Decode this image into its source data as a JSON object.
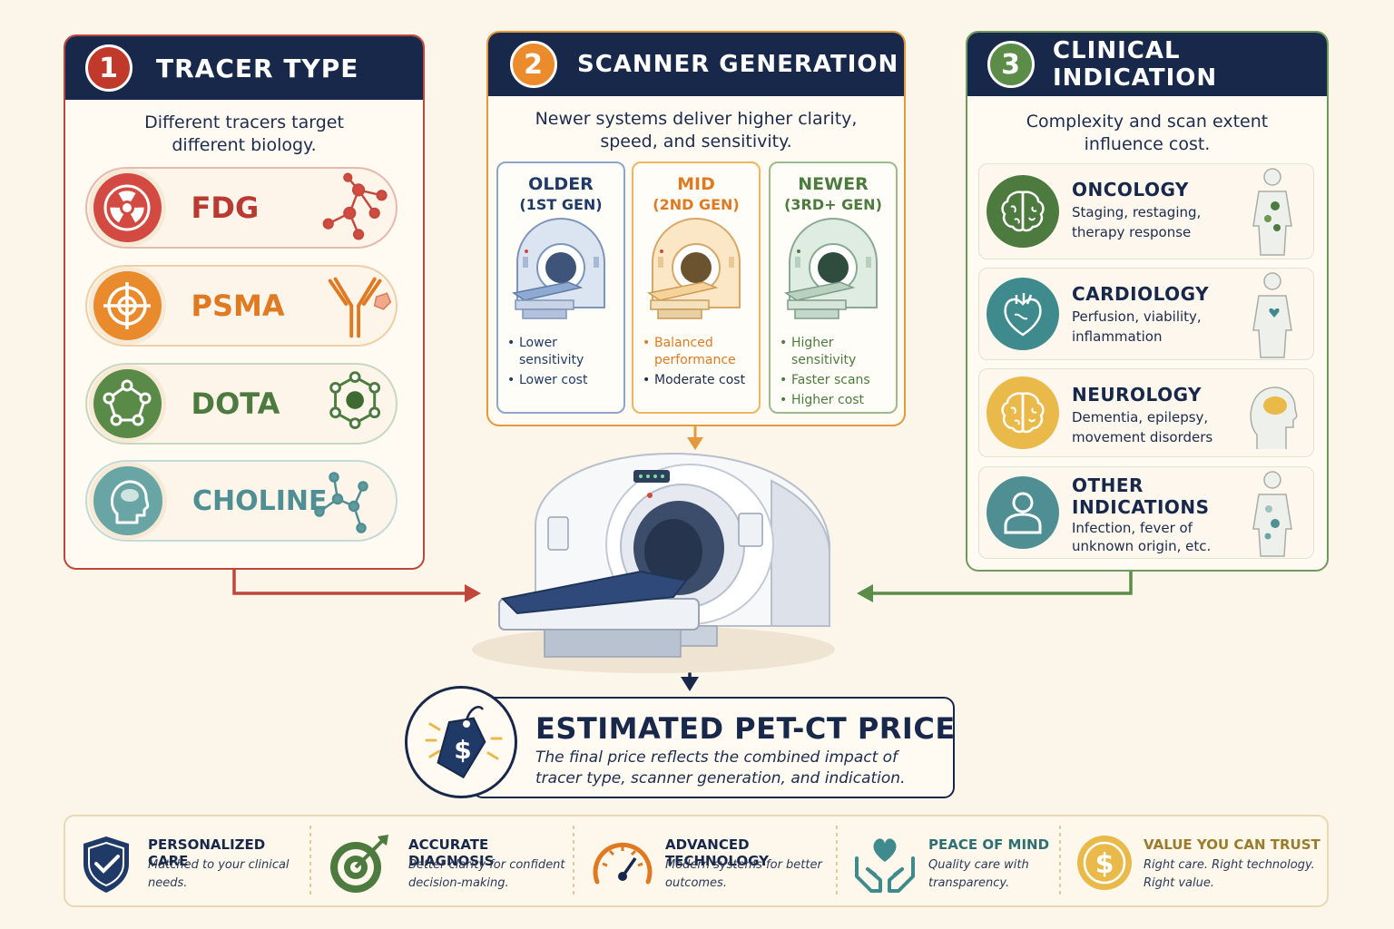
{
  "tracer": {
    "number": "1",
    "title": "TRACER TYPE",
    "subtitle_line1": "Different tracers target",
    "subtitle_line2": "different biology.",
    "items": [
      {
        "label": "FDG",
        "color": "#b93a32",
        "icon": "radiation-icon"
      },
      {
        "label": "PSMA",
        "color": "#e07a22",
        "icon": "target-icon"
      },
      {
        "label": "DOTA",
        "color": "#4d7a3e",
        "icon": "pentagon-icon"
      },
      {
        "label": "CHOLINE",
        "color": "#4f8f93",
        "icon": "head-icon"
      }
    ]
  },
  "scanner": {
    "number": "2",
    "title": "SCANNER GENERATION",
    "subtitle_line1": "Newer systems deliver higher clarity,",
    "subtitle_line2": "speed, and sensitivity.",
    "generations": [
      {
        "name": "OLDER",
        "sub": "(1ST GEN)",
        "color": "#1f3a66",
        "bullets": [
          "Lower sensitivity",
          "Lower cost"
        ]
      },
      {
        "name": "MID",
        "sub": "(2ND GEN)",
        "color": "#e07a22",
        "bullets": [
          "Balanced performance",
          "Moderate cost"
        ]
      },
      {
        "name": "NEWER",
        "sub": "(3RD+ GEN)",
        "color": "#4d7a3e",
        "bullets": [
          "Higher sensitivity",
          "Faster scans",
          "Higher cost"
        ]
      }
    ]
  },
  "clinical": {
    "number": "3",
    "title": "CLINICAL INDICATION",
    "subtitle_line1": "Complexity and scan extent",
    "subtitle_line2": "influence cost.",
    "indications": [
      {
        "title": "ONCOLOGY",
        "desc1": "Staging, restaging,",
        "desc2": "therapy response",
        "color": "#4d7a3e",
        "icon": "brain-icon"
      },
      {
        "title": "CARDIOLOGY",
        "desc1": "Perfusion, viability,",
        "desc2": "inflammation",
        "color": "#3f8a8c",
        "icon": "heart-icon"
      },
      {
        "title": "NEUROLOGY",
        "desc1": "Dementia, epilepsy,",
        "desc2": "movement disorders",
        "color": "#e9b949",
        "icon": "brain-icon"
      },
      {
        "title_line1": "OTHER",
        "title_line2": "INDICATIONS",
        "desc1": "Infection, fever of",
        "desc2": "unknown origin, etc.",
        "color": "#4f8f93",
        "icon": "person-icon"
      }
    ]
  },
  "price": {
    "title": "ESTIMATED PET-CT PRICE",
    "desc_line1": "The final price reflects the combined impact of",
    "desc_line2": "tracer type, scanner generation, and indication."
  },
  "benefits": [
    {
      "title": "PERSONALIZED CARE",
      "line1": "Matched to your clinical",
      "line2": "needs.",
      "icon": "shield-check-icon"
    },
    {
      "title": "ACCURATE DIAGNOSIS",
      "line1": "Better clarity for confident",
      "line2": "decision-making.",
      "icon": "target-arrow-icon"
    },
    {
      "title": "ADVANCED TECHNOLOGY",
      "line1": "Modern systems for better",
      "line2": "outcomes.",
      "icon": "gauge-icon"
    },
    {
      "title": "PEACE OF MIND",
      "line1": "Quality care with",
      "line2": "transparency.",
      "icon": "hands-heart-icon"
    },
    {
      "title": "VALUE YOU CAN TRUST",
      "line1": "Right care. Right technology.",
      "line2": "Right value.",
      "icon": "coin-dollar-icon"
    }
  ],
  "colors": {
    "navy": "#17284a",
    "red": "#b93a32",
    "orange": "#e07a22",
    "green": "#4d7a3e",
    "teal": "#4f8f93",
    "gold": "#e9b949",
    "cream": "#fbf5ea"
  }
}
